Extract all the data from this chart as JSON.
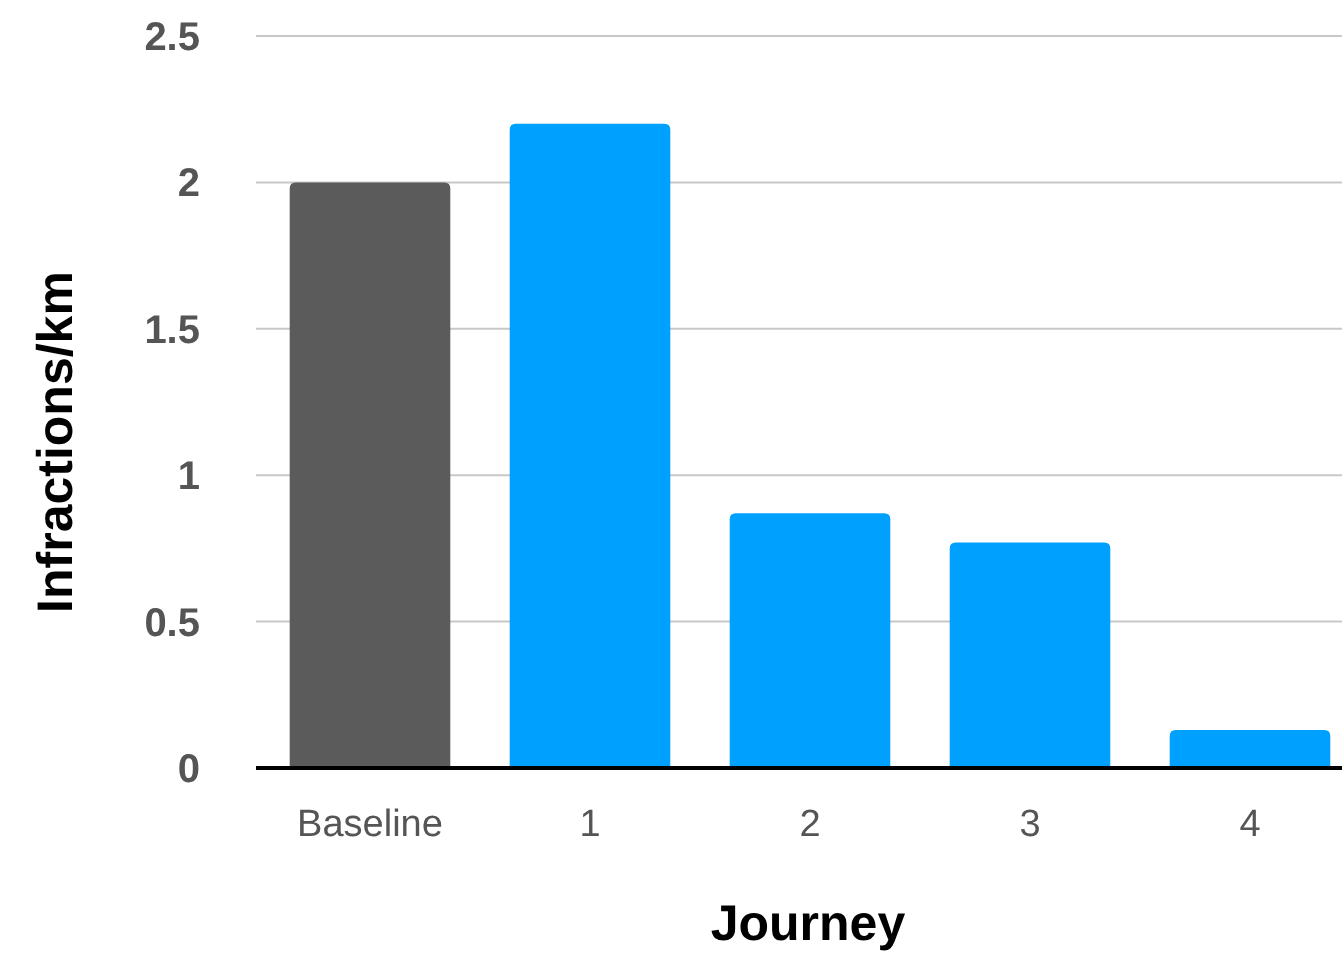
{
  "chart_data": {
    "type": "bar",
    "xlabel": "Journey",
    "ylabel": "Infractions/km",
    "categories": [
      "Baseline",
      "1",
      "2",
      "3",
      "4"
    ],
    "values": [
      2.0,
      2.2,
      0.87,
      0.77,
      0.13
    ],
    "colors": [
      "#5b5b5b",
      "#00a0ff",
      "#00a0ff",
      "#00a0ff",
      "#00a0ff"
    ],
    "ylim": [
      0,
      2.5
    ],
    "yticks": [
      0,
      0.5,
      1,
      1.5,
      2,
      2.5
    ],
    "grid": "y"
  }
}
